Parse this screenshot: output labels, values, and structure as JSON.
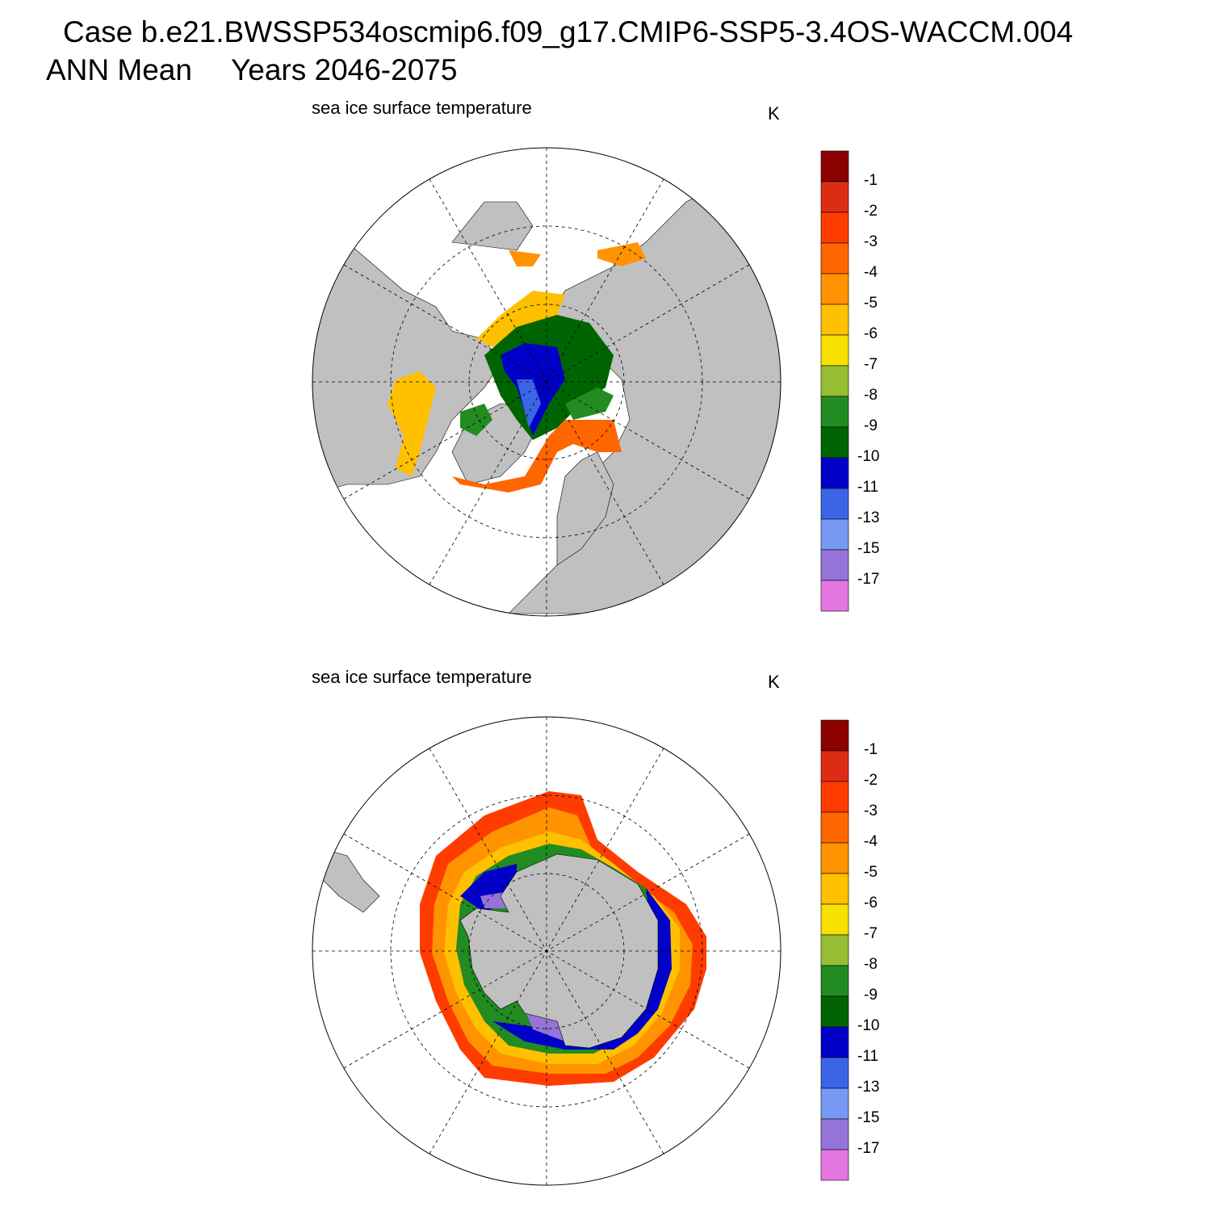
{
  "header": {
    "case_title": "Case b.e21.BWSSP534oscmip6.f09_g17.CMIP6-SSP5-3.4OS-WACCM.004",
    "season": "ANN Mean",
    "years": "Years 2046-2075"
  },
  "colors": {
    "land": "#c0c0c0",
    "scale": [
      "#e377e0",
      "#9673d8",
      "#7799f4",
      "#3c64e6",
      "#0000c8",
      "#006400",
      "#228b22",
      "#96be32",
      "#f8e000",
      "#ffc000",
      "#ff9300",
      "#ff6600",
      "#ff3c00",
      "#dc2c14",
      "#8b0000"
    ]
  },
  "panels": [
    {
      "id": "north",
      "title": "sea ice surface temperature",
      "units": "K",
      "hemisphere": "Arctic",
      "colorbar_labels": [
        "-1",
        "-2",
        "-3",
        "-4",
        "-5",
        "-6",
        "-7",
        "-8",
        "-9",
        "-10",
        "-11",
        "-13",
        "-15",
        "-17"
      ]
    },
    {
      "id": "south",
      "title": "sea ice surface temperature",
      "units": "K",
      "hemisphere": "Antarctic",
      "colorbar_labels": [
        "-1",
        "-2",
        "-3",
        "-4",
        "-5",
        "-6",
        "-7",
        "-8",
        "-9",
        "-10",
        "-11",
        "-13",
        "-15",
        "-17"
      ]
    }
  ]
}
